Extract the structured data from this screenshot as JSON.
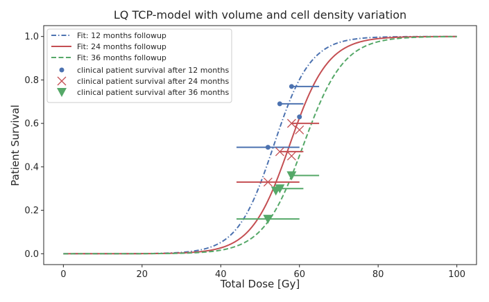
{
  "chart_data": {
    "type": "line",
    "title": "LQ TCP-model with volume and cell density variation",
    "xlabel": "Total Dose [Gy]",
    "ylabel": "Patient Survival",
    "xlim": [
      -5,
      105
    ],
    "ylim": [
      -0.05,
      1.05
    ],
    "xticks": [
      0,
      20,
      40,
      60,
      80,
      100
    ],
    "xtick_labels": [
      "0",
      "20",
      "40",
      "60",
      "80",
      "100"
    ],
    "yticks": [
      0.0,
      0.2,
      0.4,
      0.6,
      0.8,
      1.0
    ],
    "ytick_labels": [
      "0.0",
      "0.2",
      "0.4",
      "0.6",
      "0.8",
      "1.0"
    ],
    "legend_position": "top-left",
    "fits": [
      {
        "name": "Fit: 12 months followup",
        "color": "#4C72B0",
        "style": "dashdot",
        "d50": 53.5,
        "slope": 0.215
      },
      {
        "name": "Fit: 24 months followup",
        "color": "#C44E52",
        "style": "solid",
        "d50": 57.5,
        "slope": 0.205
      },
      {
        "name": "Fit: 36 months followup",
        "color": "#55A868",
        "style": "dashed",
        "d50": 61.0,
        "slope": 0.195
      }
    ],
    "x_range": [
      0,
      100
    ],
    "clinical": [
      {
        "name": "clinical patient survival after 12 months",
        "color": "#4C72B0",
        "marker": "circle",
        "points": [
          {
            "x": 58,
            "y": 0.77,
            "xmin": 58,
            "xmax": 65
          },
          {
            "x": 55,
            "y": 0.69,
            "xmin": 55,
            "xmax": 61
          },
          {
            "x": 60,
            "y": 0.63,
            "xmin": 60,
            "xmax": 60
          },
          {
            "x": 52,
            "y": 0.49,
            "xmin": 44,
            "xmax": 60
          }
        ]
      },
      {
        "name": "clinical patient survival after 24 months",
        "color": "#C44E52",
        "marker": "x",
        "points": [
          {
            "x": 58,
            "y": 0.6,
            "xmin": 58,
            "xmax": 65
          },
          {
            "x": 60,
            "y": 0.57,
            "xmin": 60,
            "xmax": 60
          },
          {
            "x": 55,
            "y": 0.47,
            "xmin": 55,
            "xmax": 61
          },
          {
            "x": 58,
            "y": 0.45,
            "xmin": 58,
            "xmax": 58
          },
          {
            "x": 52,
            "y": 0.33,
            "xmin": 44,
            "xmax": 60
          }
        ]
      },
      {
        "name": "clinical patient survival after 36 months",
        "color": "#55A868",
        "marker": "triangle-down",
        "points": [
          {
            "x": 58,
            "y": 0.36,
            "xmin": 58,
            "xmax": 65
          },
          {
            "x": 55,
            "y": 0.3,
            "xmin": 55,
            "xmax": 61
          },
          {
            "x": 54,
            "y": 0.29,
            "xmin": 54,
            "xmax": 54
          },
          {
            "x": 52,
            "y": 0.16,
            "xmin": 44,
            "xmax": 60
          }
        ]
      }
    ]
  }
}
